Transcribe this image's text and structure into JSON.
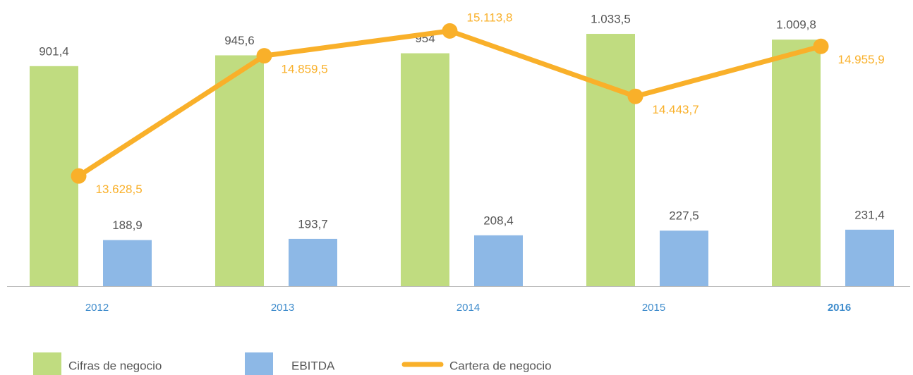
{
  "chart_data": {
    "type": "bar_line",
    "categories": [
      "2012",
      "2013",
      "2014",
      "2015",
      "2016"
    ],
    "ylim": [
      0,
      1100
    ],
    "y2lim": [
      12500,
      15250
    ],
    "series": [
      {
        "name": "Cifras de negocio",
        "type": "bar",
        "color": "#c0dc80",
        "values": [
          901.4,
          945.6,
          954,
          1033.5,
          1009.8
        ],
        "value_labels": [
          "901,4",
          "945,6",
          "954",
          "1.033,5",
          "1.009,8"
        ]
      },
      {
        "name": "EBITDA",
        "type": "bar",
        "color": "#8db8e6",
        "values": [
          188.9,
          193.7,
          208.4,
          227.5,
          231.4
        ],
        "value_labels": [
          "188,9",
          "193,7",
          "208,4",
          "227,5",
          "231,4"
        ]
      },
      {
        "name": "Cartera de negocio",
        "type": "line",
        "axis": "y2",
        "color": "#f9b02a",
        "values": [
          13628.5,
          14859.5,
          15113.8,
          14443.7,
          14955.9
        ],
        "value_labels": [
          "13.628,5",
          "14.859,5",
          "15.113,8",
          "14.443,7",
          "14.955,9"
        ]
      }
    ]
  }
}
